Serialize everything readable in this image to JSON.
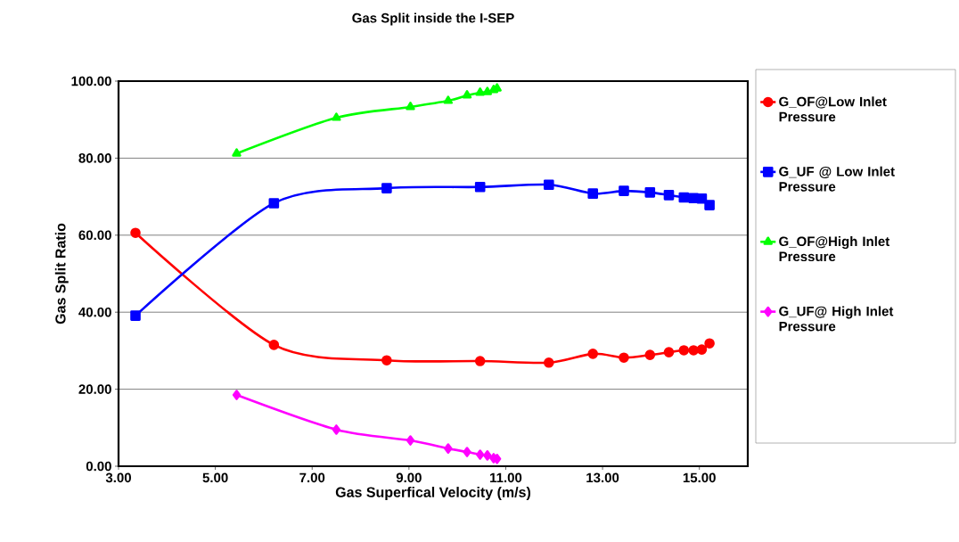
{
  "chart_data": {
    "type": "line",
    "title": "Gas Split inside the I-SEP",
    "xlabel": "Gas Superfical Velocity (m/s)",
    "ylabel": "Gas Split Ratio",
    "xlim": [
      3,
      16
    ],
    "ylim": [
      0,
      100
    ],
    "xticks": [
      {
        "value": 3,
        "label": "3.00"
      },
      {
        "value": 5,
        "label": "5.00"
      },
      {
        "value": 7,
        "label": "7.00"
      },
      {
        "value": 9,
        "label": "9.00"
      },
      {
        "value": 11,
        "label": "11.00"
      },
      {
        "value": 13,
        "label": "13.00"
      },
      {
        "value": 15,
        "label": "15.00"
      }
    ],
    "yticks": [
      {
        "value": 0,
        "label": "0.00"
      },
      {
        "value": 20,
        "label": "20.00"
      },
      {
        "value": 40,
        "label": "40.00"
      },
      {
        "value": 60,
        "label": "60.00"
      },
      {
        "value": 80,
        "label": "80.00"
      },
      {
        "value": 100,
        "label": "100.00"
      }
    ],
    "grid": "y",
    "legend": "right",
    "line_style": "solid",
    "series": [
      {
        "name": "G_OF@Low Inlet Pressure",
        "color": "#ff0000",
        "marker": "circle",
        "x": [
          3.35,
          6.21,
          8.54,
          10.47,
          11.89,
          12.8,
          13.44,
          13.98,
          14.37,
          14.68,
          14.88,
          15.05,
          15.21
        ],
        "values": [
          60.6,
          31.5,
          27.5,
          27.3,
          26.9,
          29.2,
          28.2,
          28.9,
          29.6,
          30.1,
          30.1,
          30.3,
          31.9
        ]
      },
      {
        "name": "G_UF @ Low Inlet Pressure",
        "color": "#0000ff",
        "marker": "square",
        "x": [
          3.35,
          6.21,
          8.54,
          10.47,
          11.89,
          12.8,
          13.44,
          13.98,
          14.37,
          14.68,
          14.88,
          15.05,
          15.21
        ],
        "values": [
          39.1,
          68.3,
          72.2,
          72.5,
          73.1,
          70.8,
          71.5,
          71.1,
          70.4,
          69.8,
          69.6,
          69.5,
          67.8
        ]
      },
      {
        "name": "G_OF@High Inlet Pressure",
        "color": "#00ff00",
        "marker": "triangle",
        "x": [
          5.44,
          7.5,
          9.03,
          9.81,
          10.2,
          10.47,
          10.62,
          10.75,
          10.82
        ],
        "values": [
          81.2,
          90.5,
          93.3,
          94.9,
          96.3,
          97.0,
          97.2,
          97.7,
          98.1
        ]
      },
      {
        "name": "G_UF@ High Inlet Pressure",
        "color": "#ff00ff",
        "marker": "diamond",
        "x": [
          5.44,
          7.5,
          9.03,
          9.81,
          10.2,
          10.47,
          10.62,
          10.75,
          10.82
        ],
        "values": [
          18.5,
          9.5,
          6.7,
          4.6,
          3.7,
          3.0,
          2.8,
          2.1,
          1.9
        ]
      }
    ]
  }
}
